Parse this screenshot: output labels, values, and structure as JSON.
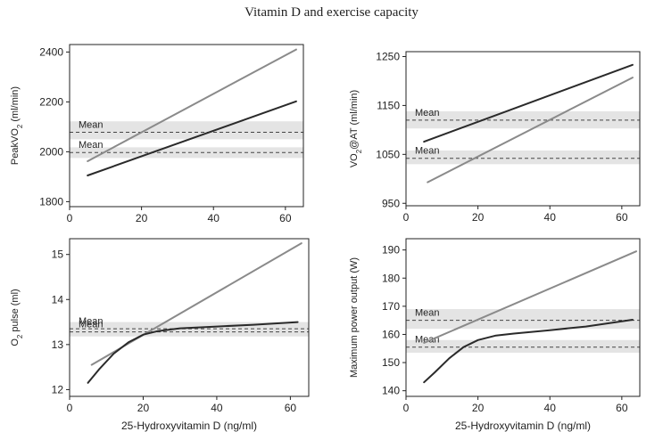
{
  "figure_title": "Vitamin D and exercise capacity",
  "chart_data": [
    {
      "type": "line",
      "panel": "top-left",
      "title": "",
      "ylabel_main": "PeakVO",
      "ylabel_sub": "2",
      "ylabel_tail": " (ml/min)",
      "xlabel": "",
      "xlim": [
        0,
        65
      ],
      "ylim": [
        1780,
        2430
      ],
      "xticks": [
        0,
        20,
        40,
        60
      ],
      "yticks": [
        1800,
        2000,
        2200,
        2400
      ],
      "mean_label": "Mean",
      "means": [
        {
          "name": "Mean",
          "value": 2078,
          "band": [
            2050,
            2122
          ]
        },
        {
          "name": "Mean",
          "value": 1997,
          "band": [
            1975,
            2018
          ]
        }
      ],
      "series": [
        {
          "name": "gray",
          "color": "#8a8a8a",
          "x": [
            5,
            63
          ],
          "y": [
            1962,
            2410
          ]
        },
        {
          "name": "black",
          "color": "#2a2a2a",
          "x": [
            5,
            63
          ],
          "y": [
            1905,
            2202
          ]
        }
      ]
    },
    {
      "type": "line",
      "panel": "top-right",
      "title": "",
      "ylabel_main": "VO",
      "ylabel_sub": "2",
      "ylabel_tail": "@AT (ml/min)",
      "xlabel": "",
      "xlim": [
        0,
        65
      ],
      "ylim": [
        945,
        1260
      ],
      "xticks": [
        0,
        20,
        40,
        60
      ],
      "yticks": [
        950,
        1050,
        1150,
        1250
      ],
      "mean_label": "Mean",
      "means": [
        {
          "name": "Mean",
          "value": 1120,
          "band": [
            1103,
            1138
          ]
        },
        {
          "name": "Mean",
          "value": 1042,
          "band": [
            1030,
            1058
          ]
        }
      ],
      "series": [
        {
          "name": "black",
          "color": "#2a2a2a",
          "x": [
            5,
            63
          ],
          "y": [
            1076,
            1233
          ]
        },
        {
          "name": "gray",
          "color": "#8a8a8a",
          "x": [
            6,
            63
          ],
          "y": [
            993,
            1207
          ]
        }
      ]
    },
    {
      "type": "line",
      "panel": "bottom-left",
      "title": "",
      "ylabel_main": "O",
      "ylabel_sub": "2",
      "ylabel_tail": " pulse (ml)",
      "xlabel": "25-Hydroxyvitamin D (ng/ml)",
      "xlim": [
        0,
        65
      ],
      "ylim": [
        11.85,
        15.35
      ],
      "xticks": [
        0,
        20,
        40,
        60
      ],
      "yticks": [
        12,
        13,
        14,
        15
      ],
      "mean_label": "Mean",
      "means": [
        {
          "name": "Mean",
          "value": 13.35,
          "band": [
            13.22,
            13.5
          ]
        },
        {
          "name": "Mean",
          "value": 13.28,
          "band": [
            13.18,
            13.42
          ]
        }
      ],
      "series": [
        {
          "name": "gray",
          "color": "#8a8a8a",
          "x": [
            6,
            63
          ],
          "y": [
            12.55,
            15.25
          ]
        },
        {
          "name": "black",
          "color": "#2a2a2a",
          "x": [
            5,
            8,
            12,
            16,
            20,
            24,
            30,
            40,
            50,
            62
          ],
          "y": [
            12.15,
            12.45,
            12.8,
            13.05,
            13.22,
            13.3,
            13.36,
            13.4,
            13.44,
            13.5
          ]
        }
      ]
    },
    {
      "type": "line",
      "panel": "bottom-right",
      "title": "",
      "ylabel_main": "Maximum power output (W)",
      "ylabel_sub": "",
      "ylabel_tail": "",
      "xlabel": "25-Hydroxyvitamin D (ng/ml)",
      "xlim": [
        0,
        65
      ],
      "ylim": [
        138,
        194
      ],
      "xticks": [
        0,
        20,
        40,
        60
      ],
      "yticks": [
        140,
        150,
        160,
        170,
        180,
        190
      ],
      "mean_label": "Mean",
      "means": [
        {
          "name": "Mean",
          "value": 165,
          "band": [
            162,
            169
          ]
        },
        {
          "name": "Mean",
          "value": 155.5,
          "band": [
            153.5,
            158
          ]
        }
      ],
      "series": [
        {
          "name": "gray",
          "color": "#8a8a8a",
          "x": [
            5,
            64
          ],
          "y": [
            157,
            189.5
          ]
        },
        {
          "name": "black",
          "color": "#2a2a2a",
          "x": [
            5,
            8,
            12,
            16,
            20,
            25,
            30,
            40,
            50,
            63
          ],
          "y": [
            143,
            146.5,
            151.5,
            155.5,
            158,
            159.6,
            160.3,
            161.5,
            162.8,
            165.2
          ]
        }
      ]
    }
  ]
}
